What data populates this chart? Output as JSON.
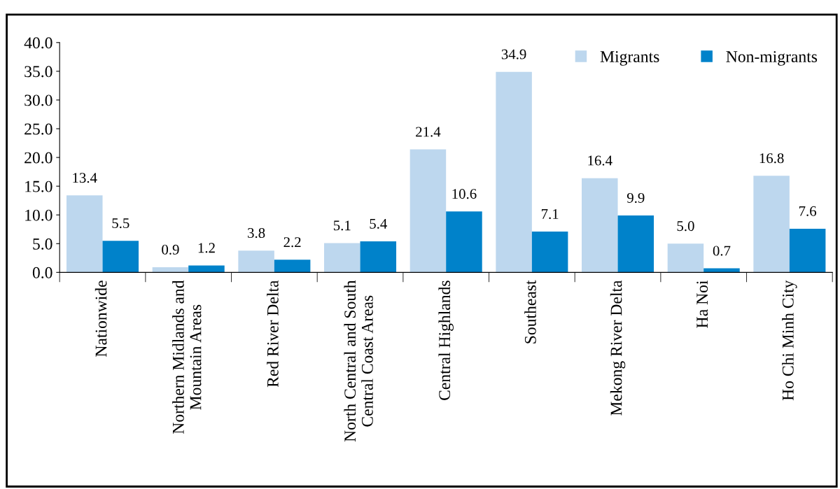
{
  "chart_data": {
    "type": "bar",
    "categories": [
      "Nationwide",
      "Northern Midlands and\nMountain Areas",
      "Red River Delta",
      "North Central and South\nCentral Coast Areas",
      "Central Highlands",
      "Southeast",
      "Mekong River Delta",
      "Ha Noi",
      "Ho Chi Minh City"
    ],
    "series": [
      {
        "name": "Migrants",
        "color": "#bdd7ee",
        "values": [
          13.4,
          0.9,
          3.8,
          5.1,
          21.4,
          34.9,
          16.4,
          5.0,
          16.8
        ],
        "value_labels": [
          "13.4",
          "0.9",
          "3.8",
          "5.1",
          "21.4",
          "34.9",
          "16.4",
          "5.0",
          "16.8"
        ]
      },
      {
        "name": "Non-migrants",
        "color": "#0082ca",
        "values": [
          5.5,
          1.2,
          2.2,
          5.4,
          10.6,
          7.1,
          9.9,
          0.7,
          7.6
        ],
        "value_labels": [
          "5.5",
          "1.2",
          "2.2",
          "5.4",
          "10.6",
          "7.1",
          "9.9",
          "0.7",
          "7.6"
        ]
      }
    ],
    "ylim": [
      0,
      40
    ],
    "yticks": [
      {
        "value": 0,
        "label": "0.0"
      },
      {
        "value": 5,
        "label": "5.0"
      },
      {
        "value": 10,
        "label": "10.0"
      },
      {
        "value": 15,
        "label": "15.0"
      },
      {
        "value": 20,
        "label": "20.0"
      },
      {
        "value": 25,
        "label": "25.0"
      },
      {
        "value": 30,
        "label": "30.0"
      },
      {
        "value": 35,
        "label": "35.0"
      },
      {
        "value": 40,
        "label": "40.0"
      }
    ],
    "grid": false,
    "legend": "top right"
  }
}
